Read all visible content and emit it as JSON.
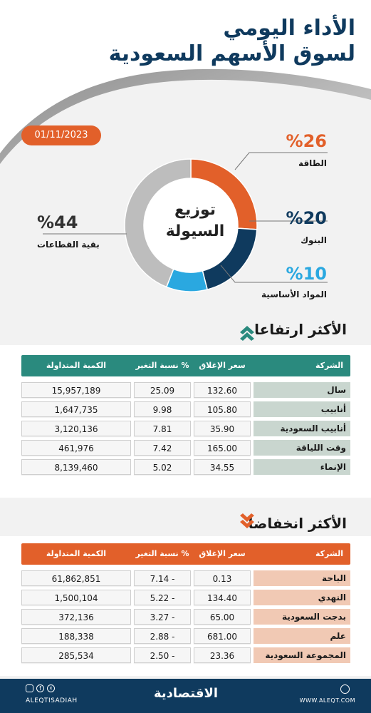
{
  "title": {
    "line1": "الأداء اليومي",
    "line2": "لسوق الأسهم السعودية"
  },
  "date": "01/11/2023",
  "liquidity": {
    "center_line1": "توزيع",
    "center_line2": "السيولة"
  },
  "legend": {
    "energy": {
      "pct": "%26",
      "label": "الطاقة"
    },
    "banks": {
      "pct": "%20",
      "label": "البنوك"
    },
    "materials": {
      "pct": "%10",
      "label": "المواد الأساسية"
    },
    "rest": {
      "pct": "%44",
      "label": "بقية القطاعات"
    }
  },
  "colors": {
    "energy": "#e2602a",
    "banks": "#0f3a5e",
    "materials": "#2aa8e0",
    "rest": "#bdbdbd",
    "gainers_header": "#2a8a7e",
    "losers_header": "#e2602a"
  },
  "chart_data": [
    {
      "type": "pie",
      "categories": [
        "الطاقة",
        "البنوك",
        "المواد الأساسية",
        "بقية القطاعات"
      ],
      "values": [
        26,
        20,
        10,
        44
      ]
    },
    {
      "type": "table",
      "columns": [
        "الشركة",
        "سعر الإغلاق",
        "نسبة التغير %",
        "الكمية المتداولة"
      ],
      "rows": [
        [
          "سال",
          "132.60",
          "25.09",
          "15,957,189"
        ],
        [
          "أنابيب",
          "105.80",
          "9.98",
          "1,647,735"
        ],
        [
          "أنابيب السعودية",
          "35.90",
          "7.81",
          "3,120,136"
        ],
        [
          "وقت اللياقة",
          "165.00",
          "7.42",
          "461,976"
        ],
        [
          "الإنماء",
          "34.55",
          "5.02",
          "8,139,460"
        ]
      ]
    },
    {
      "type": "table",
      "columns": [
        "الشركة",
        "سعر الإغلاق",
        "نسبة التغير %",
        "الكمية المتداولة"
      ],
      "rows": [
        [
          "الباحة",
          "0.13",
          "7.14 -",
          "61,862,851"
        ],
        [
          "النهدي",
          "134.40",
          "5.22 -",
          "1,500,104"
        ],
        [
          "بدجت السعودية",
          "65.00",
          "3.27 -",
          "372,136"
        ],
        [
          "علم",
          "681.00",
          "2.88 -",
          "188,338"
        ],
        [
          "المجموعة السعودية",
          "23.36",
          "2.50 -",
          "285,534"
        ]
      ]
    }
  ],
  "gainers": {
    "title": "الأكثر ارتفاعا",
    "headers": {
      "company": "الشركة",
      "close": "سعر الإغلاق",
      "change": "نسبة التغير %",
      "volume": "الكمية المتداولة"
    },
    "rows": [
      {
        "company": "سال",
        "close": "132.60",
        "change": "25.09",
        "volume": "15,957,189"
      },
      {
        "company": "أنابيب",
        "close": "105.80",
        "change": "9.98",
        "volume": "1,647,735"
      },
      {
        "company": "أنابيب السعودية",
        "close": "35.90",
        "change": "7.81",
        "volume": "3,120,136"
      },
      {
        "company": "وقت اللياقة",
        "close": "165.00",
        "change": "7.42",
        "volume": "461,976"
      },
      {
        "company": "الإنماء",
        "close": "34.55",
        "change": "5.02",
        "volume": "8,139,460"
      }
    ]
  },
  "losers": {
    "title": "الأكثر انخفاضا",
    "headers": {
      "company": "الشركة",
      "close": "سعر الإغلاق",
      "change": "نسبة التغير %",
      "volume": "الكمية المتداولة"
    },
    "rows": [
      {
        "company": "الباحة",
        "close": "0.13",
        "change": "7.14 -",
        "volume": "61,862,851"
      },
      {
        "company": "النهدي",
        "close": "134.40",
        "change": "5.22 -",
        "volume": "1,500,104"
      },
      {
        "company": "بدجت السعودية",
        "close": "65.00",
        "change": "3.27 -",
        "volume": "372,136"
      },
      {
        "company": "علم",
        "close": "681.00",
        "change": "2.88 -",
        "volume": "188,338"
      },
      {
        "company": "المجموعة السعودية",
        "close": "23.36",
        "change": "2.50 -",
        "volume": "285,534"
      }
    ]
  },
  "footer": {
    "handle": "ALEQTISADIAH",
    "logo": "الاقتصادية",
    "site": "WWW.ALEQT.COM",
    "social_icons": [
      "instagram-icon",
      "facebook-icon",
      "x-icon"
    ]
  }
}
